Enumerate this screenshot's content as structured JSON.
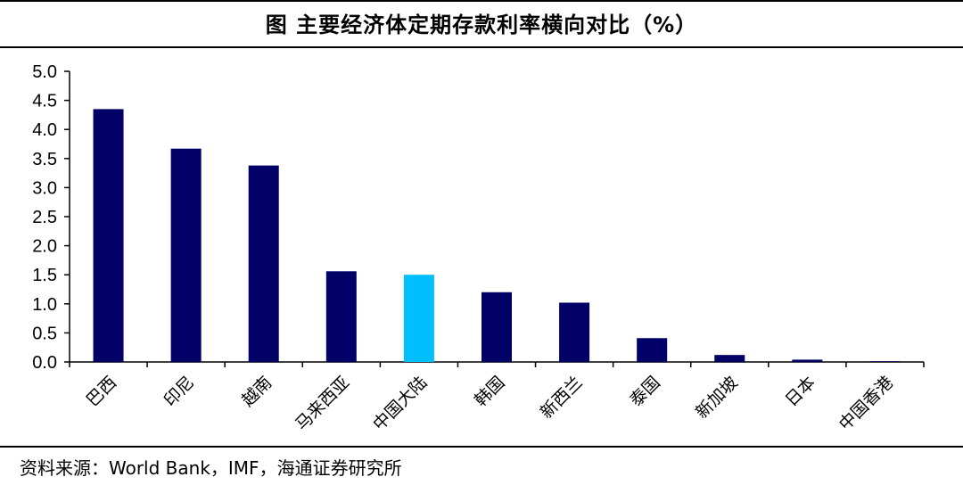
{
  "title": "图  主要经济体定期存款利率横向对比（%）",
  "source": "资料来源：World Bank，IMF，海通证券研究所",
  "colors": {
    "bar": "#000066",
    "highlight": "#00BFFF",
    "axis": "#000000"
  },
  "chart_data": {
    "type": "bar",
    "categories": [
      "巴西",
      "印尼",
      "越南",
      "马来西亚",
      "中国大陆",
      "韩国",
      "新西兰",
      "泰国",
      "新加坡",
      "日本",
      "中国香港"
    ],
    "values": [
      4.35,
      3.67,
      3.38,
      1.56,
      1.5,
      1.2,
      1.02,
      0.41,
      0.12,
      0.04,
      0.01
    ],
    "highlight_index": 4,
    "ylim": [
      0,
      5
    ],
    "yticks": [
      "0.0",
      "0.5",
      "1.0",
      "1.5",
      "2.0",
      "2.5",
      "3.0",
      "3.5",
      "4.0",
      "4.5",
      "5.0"
    ],
    "xlabel": "",
    "ylabel": "",
    "grid": false
  }
}
